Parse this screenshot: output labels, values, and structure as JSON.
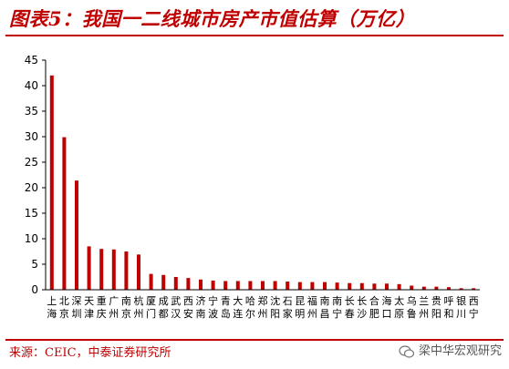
{
  "header": {
    "title": "图表5：我国一二线城市房产市值估算（万亿）"
  },
  "footer": {
    "source": "来源：CEIC，中泰证券研究所",
    "watermark": "梁中华宏观研究"
  },
  "colors": {
    "bar": "#c00000",
    "accent": "#c00000",
    "axis": "#000000"
  },
  "chart_data": {
    "type": "bar",
    "title": "",
    "xlabel": "",
    "ylabel": "",
    "ylim": [
      0,
      45
    ],
    "yticks": [
      0,
      5,
      10,
      15,
      20,
      25,
      30,
      35,
      40,
      45
    ],
    "grid": false,
    "legend": "none",
    "categories": [
      "上海",
      "北京",
      "深圳",
      "天津",
      "重庆",
      "广州",
      "南京",
      "杭州",
      "厦门",
      "成都",
      "武汉",
      "西安",
      "济南",
      "宁波",
      "青岛",
      "大连",
      "哈尔滨",
      "郑州",
      "沈阳",
      "石家庄",
      "昆明",
      "福州",
      "南昌",
      "南宁",
      "长春",
      "长沙",
      "合肥",
      "海口",
      "太原",
      "乌鲁木齐",
      "兰州",
      "贵阳",
      "呼和浩特",
      "银川",
      "西宁"
    ],
    "values": [
      42.0,
      29.9,
      21.4,
      8.5,
      8.0,
      7.9,
      7.5,
      6.9,
      3.1,
      2.9,
      2.5,
      2.3,
      2.0,
      1.8,
      1.7,
      1.7,
      1.7,
      1.7,
      1.7,
      1.6,
      1.5,
      1.5,
      1.5,
      1.4,
      1.3,
      1.3,
      1.2,
      1.2,
      1.1,
      0.8,
      0.6,
      0.6,
      0.5,
      0.3,
      0.3
    ]
  }
}
